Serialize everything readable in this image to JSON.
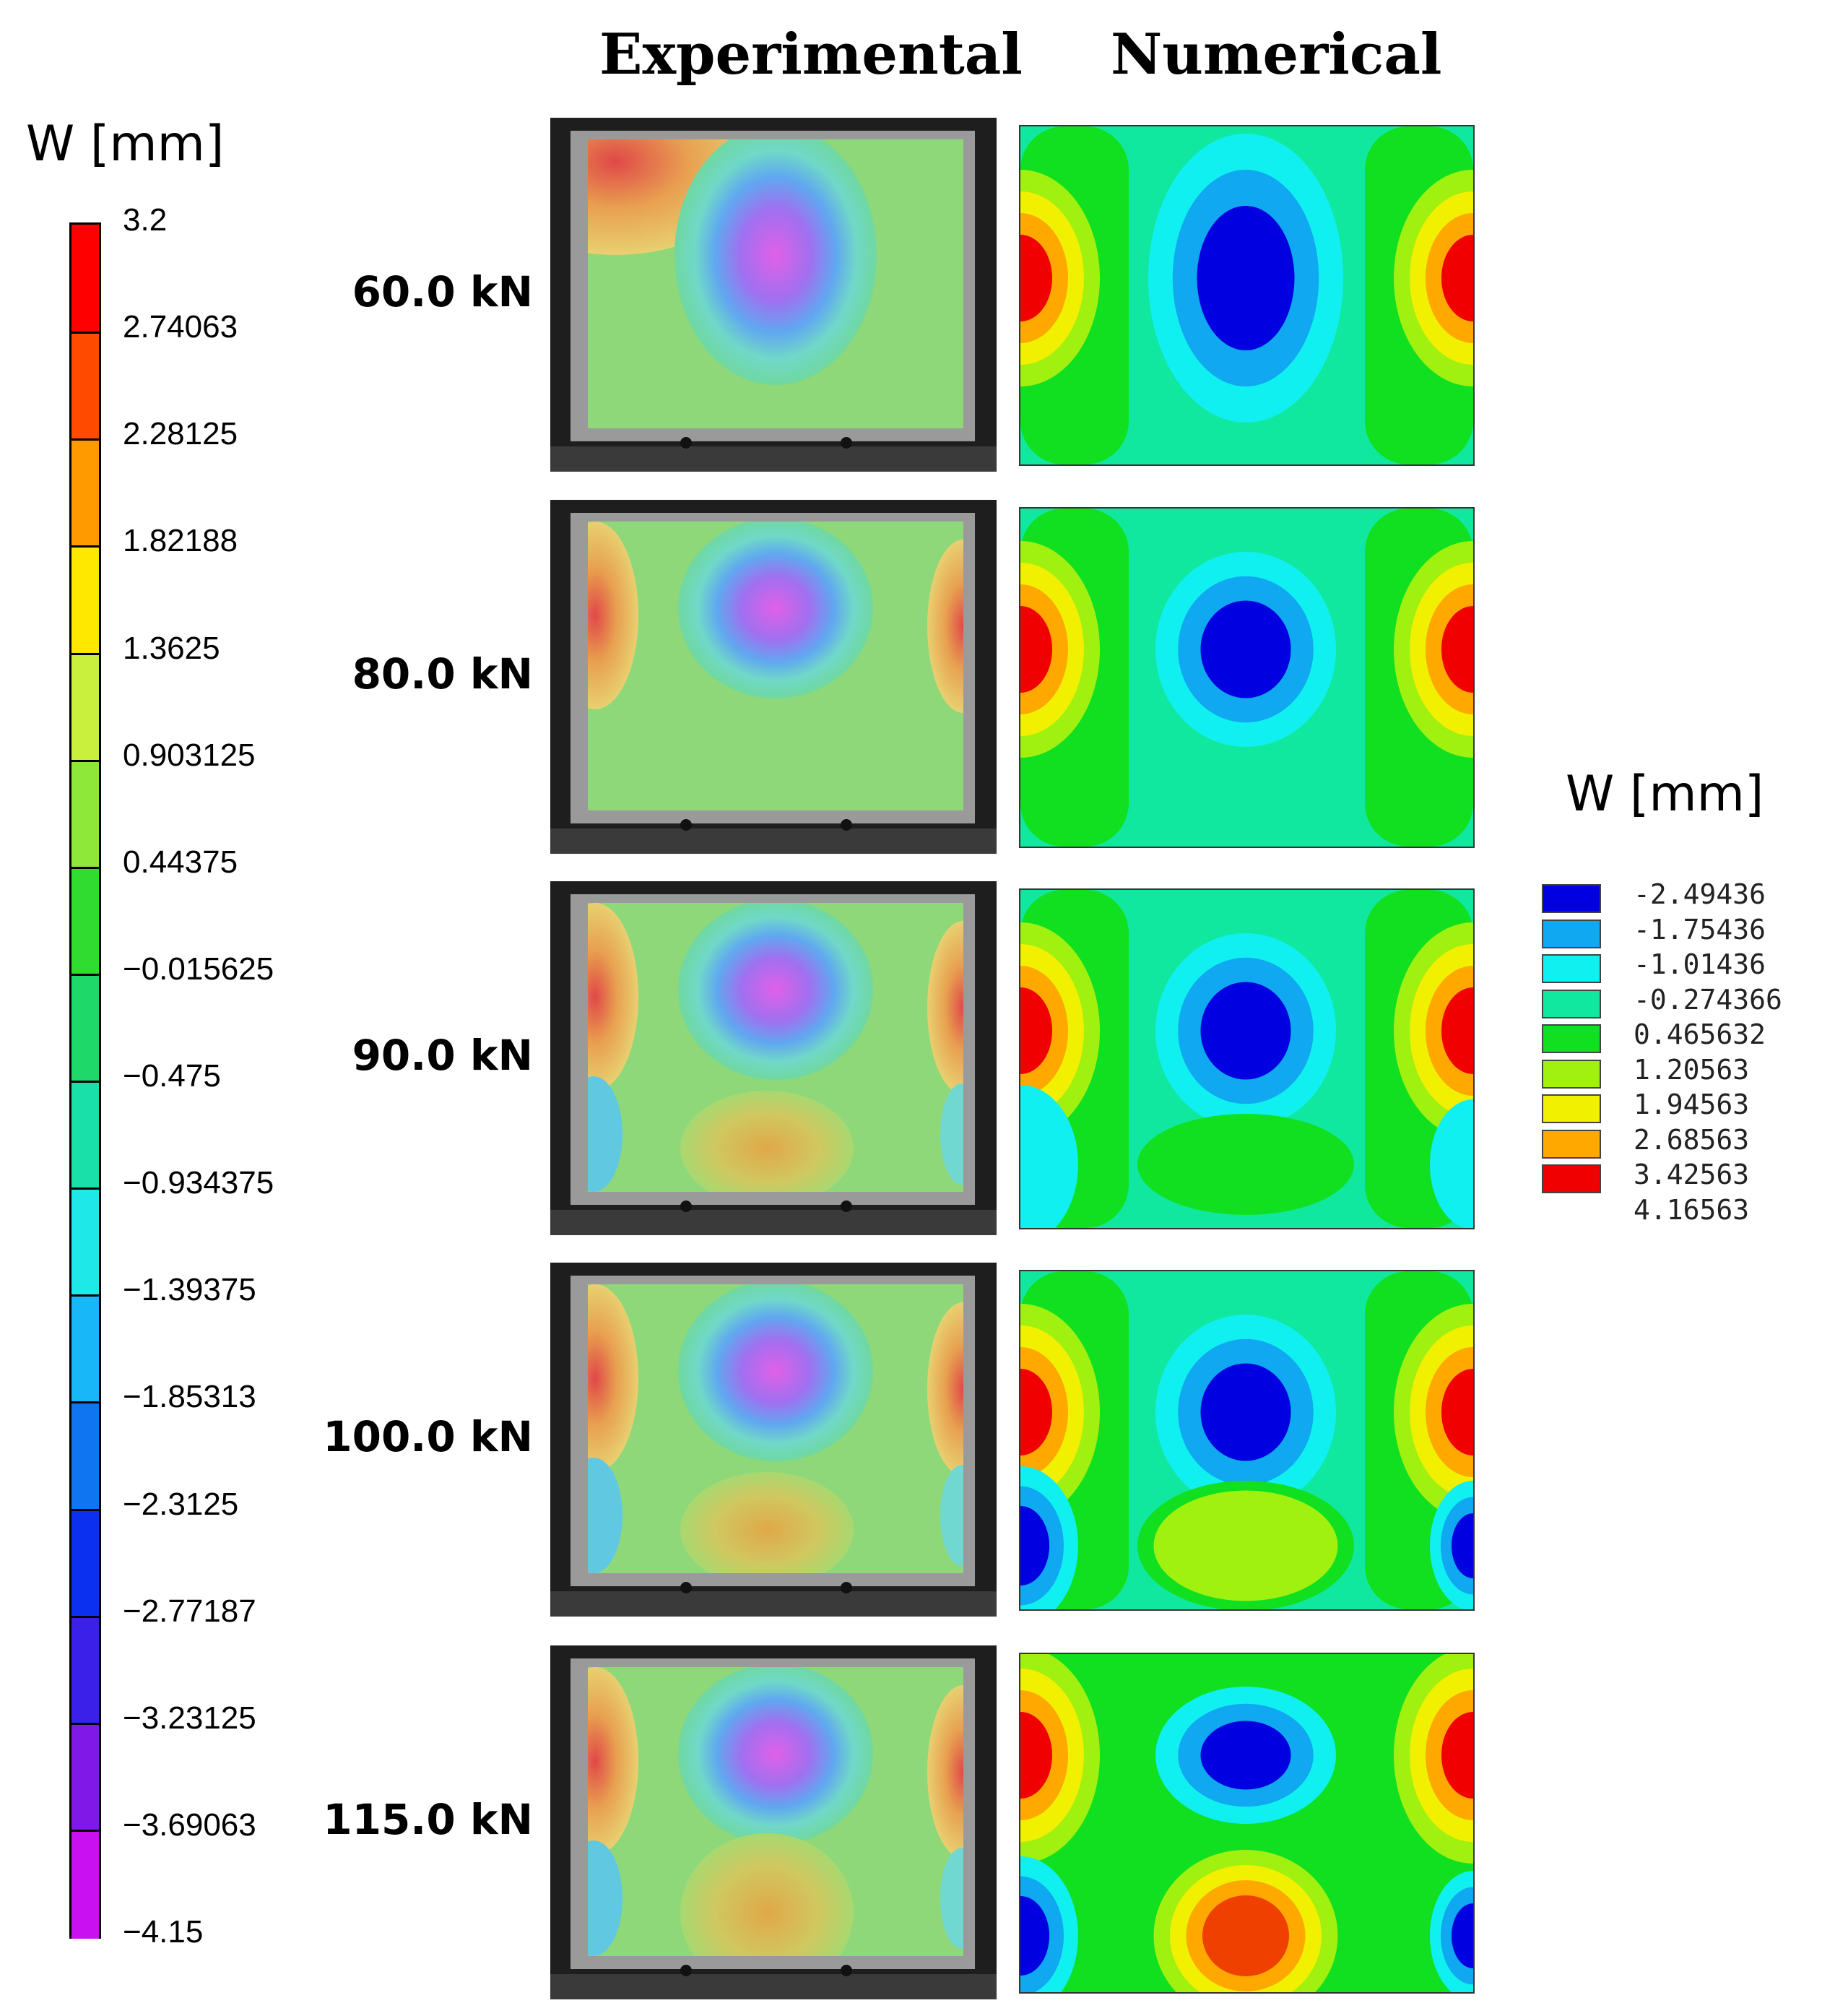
{
  "headers": {
    "experimental": "Experimental",
    "numerical": "Numerical"
  },
  "left_legend": {
    "title": "W [mm]",
    "ticks": [
      "3.2",
      "2.74063",
      "2.28125",
      "1.82188",
      "1.3625",
      "0.903125",
      "0.44375",
      "−0.015625",
      "−0.475",
      "−0.934375",
      "−1.39375",
      "−1.85313",
      "−2.3125",
      "−2.77187",
      "−3.23125",
      "−3.69063",
      "−4.15"
    ],
    "colors": [
      "#ff0000",
      "#ff4a00",
      "#ff9a00",
      "#ffe800",
      "#c8f03c",
      "#8ee83a",
      "#2fdc2f",
      "#1ed86a",
      "#19dfa8",
      "#1ee8e8",
      "#18b8f8",
      "#1075f0",
      "#0c30f0",
      "#3a20e8",
      "#8018e8",
      "#c810f0"
    ]
  },
  "right_legend": {
    "title": "W [mm]",
    "labels": [
      "-2.49436",
      "-1.75436",
      "-1.01436",
      "-0.274366",
      "0.465632",
      "1.20563",
      "1.94563",
      "2.68563",
      "3.42563",
      "4.16563"
    ],
    "colors": [
      "#0000e0",
      "#10a8f0",
      "#10f0f0",
      "#10e8a0",
      "#10e020",
      "#a0f010",
      "#f0f000",
      "#ffa800",
      "#f00000",
      "#ffffff"
    ]
  },
  "rows": [
    {
      "load": "60.0 kN"
    },
    {
      "load": "80.0 kN"
    },
    {
      "load": "90.0 kN"
    },
    {
      "load": "100.0 kN"
    },
    {
      "load": "115.0 kN"
    }
  ]
}
